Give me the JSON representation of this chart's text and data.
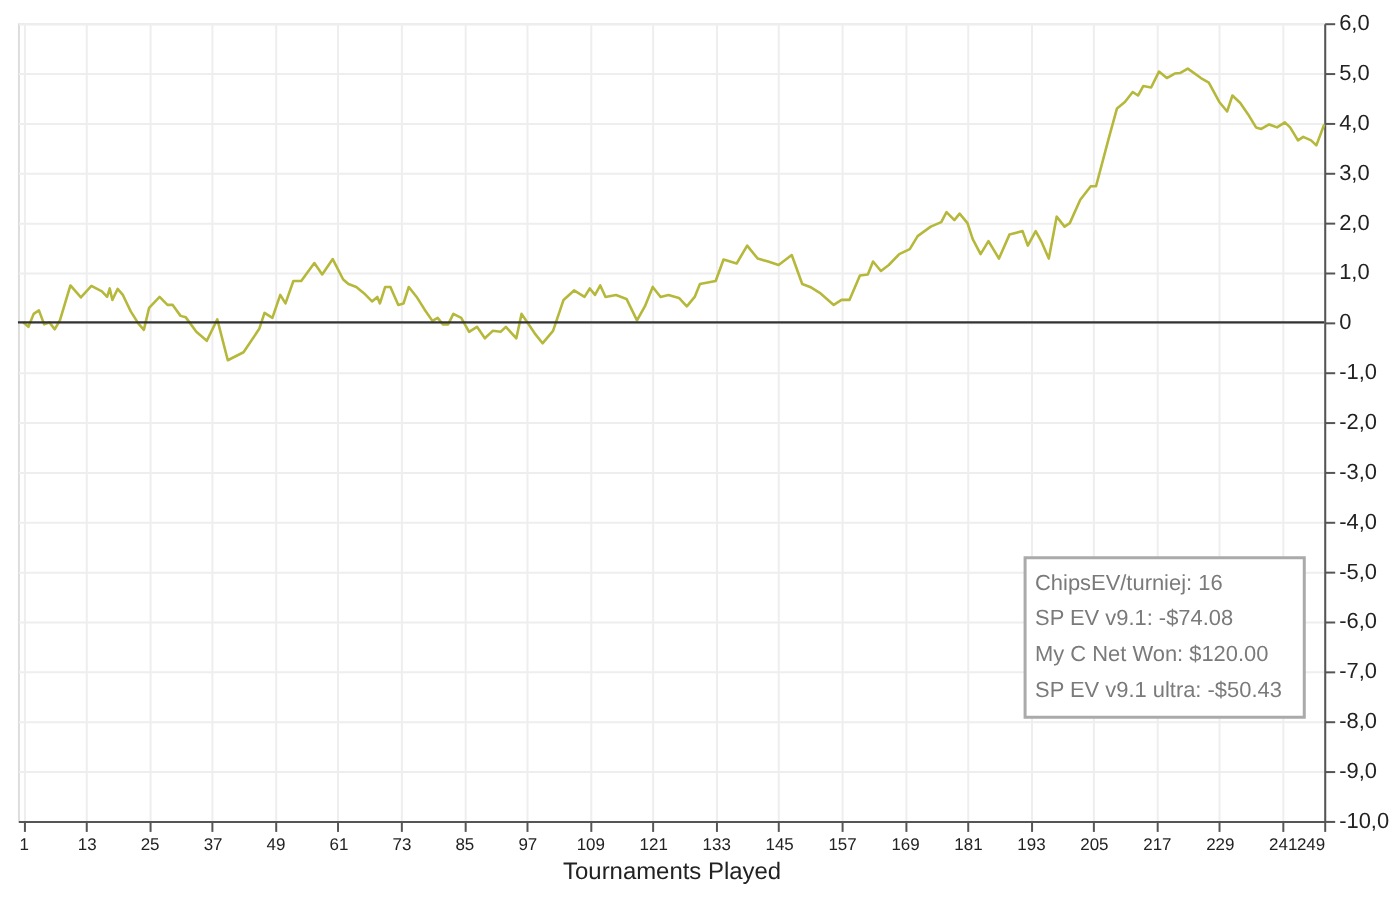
{
  "chart_data": {
    "type": "line",
    "xlabel": "Tournaments Played",
    "x": [
      1,
      2,
      3,
      4,
      5,
      6,
      7,
      8,
      10,
      12,
      14,
      16,
      17,
      17.5,
      18,
      19,
      20,
      21.5,
      23,
      24,
      25,
      27,
      28.5,
      29.5,
      31,
      32,
      34,
      36,
      38,
      40,
      43,
      46,
      47,
      48.5,
      50,
      51,
      52.5,
      54,
      56.5,
      58,
      60,
      62,
      63,
      64.5,
      66,
      67.5,
      68.5,
      69,
      70,
      71,
      72.5,
      73.5,
      74.5,
      76,
      77.5,
      79,
      80,
      81,
      82,
      83,
      84.5,
      86,
      87.5,
      89,
      90.5,
      92,
      93,
      95,
      96,
      98.5,
      100,
      102,
      104,
      106,
      108,
      109,
      110,
      111,
      112,
      114,
      116,
      118,
      119.5,
      121,
      122.5,
      124,
      126,
      127.5,
      129,
      130,
      133,
      134.5,
      137,
      139,
      141,
      143,
      145,
      147.5,
      149.5,
      151,
      153,
      155.5,
      157,
      158.5,
      160.5,
      162,
      163,
      164.5,
      166,
      168,
      170,
      171.5,
      174,
      176,
      177,
      178.5,
      179.5,
      181,
      182,
      183.5,
      185,
      187,
      189,
      191.5,
      192.5,
      194,
      195,
      196.5,
      198,
      199.5,
      200.5,
      202.5,
      204.5,
      205.5,
      208,
      209.5,
      211,
      212.5,
      213.5,
      214.5,
      216,
      217.5,
      219,
      220.5,
      221.5,
      223,
      225.5,
      227,
      229,
      230.5,
      231.5,
      233,
      234.5,
      236,
      237,
      238.5,
      240,
      241.5,
      242.5,
      244,
      245,
      246.5,
      247.5,
      249
    ],
    "series": [
      {
        "color": "#b5b83a",
        "values": [
          0,
          -0.09,
          0.17,
          0.24,
          -0.04,
          0,
          -0.14,
          0.04,
          0.74,
          0.5,
          0.73,
          0.62,
          0.51,
          0.68,
          0.45,
          0.67,
          0.55,
          0.22,
          -0.03,
          -0.15,
          0.29,
          0.51,
          0.35,
          0.35,
          0.13,
          0.1,
          -0.19,
          -0.37,
          0.06,
          -0.76,
          -0.6,
          -0.13,
          0.19,
          0.09,
          0.55,
          0.38,
          0.83,
          0.83,
          1.19,
          0.96,
          1.27,
          0.86,
          0.77,
          0.71,
          0.58,
          0.42,
          0.51,
          0.38,
          0.71,
          0.71,
          0.35,
          0.38,
          0.71,
          0.51,
          0.26,
          0.03,
          0.09,
          -0.04,
          -0.04,
          0.17,
          0.09,
          -0.19,
          -0.09,
          -0.32,
          -0.17,
          -0.19,
          -0.09,
          -0.32,
          0.17,
          -0.22,
          -0.42,
          -0.17,
          0.45,
          0.64,
          0.51,
          0.68,
          0.55,
          0.74,
          0.51,
          0.55,
          0.47,
          0.04,
          0.32,
          0.71,
          0.51,
          0.55,
          0.49,
          0.32,
          0.51,
          0.77,
          0.83,
          1.26,
          1.18,
          1.54,
          1.28,
          1.22,
          1.15,
          1.35,
          0.77,
          0.71,
          0.58,
          0.35,
          0.45,
          0.45,
          0.94,
          0.96,
          1.22,
          1.03,
          1.15,
          1.37,
          1.47,
          1.73,
          1.92,
          2.01,
          2.21,
          2.05,
          2.18,
          1.99,
          1.67,
          1.37,
          1.63,
          1.28,
          1.76,
          1.83,
          1.54,
          1.83,
          1.64,
          1.28,
          2.12,
          1.92,
          1.99,
          2.46,
          2.73,
          2.73,
          3.72,
          4.29,
          4.42,
          4.62,
          4.55,
          4.74,
          4.71,
          5.03,
          4.9,
          4.99,
          5.0,
          5.09,
          4.9,
          4.81,
          4.42,
          4.23,
          4.55,
          4.4,
          4.17,
          3.91,
          3.88,
          3.97,
          3.91,
          4.01,
          3.91,
          3.65,
          3.72,
          3.65,
          3.55,
          3.97
        ]
      }
    ],
    "xlim": [
      0,
      249
    ],
    "xticks": [
      1,
      13,
      25,
      37,
      49,
      61,
      73,
      85,
      97,
      109,
      121,
      133,
      145,
      157,
      169,
      181,
      193,
      205,
      217,
      229,
      241,
      249
    ],
    "ylim": [
      -10,
      6
    ],
    "yticks": [
      {
        "value": 6,
        "label": "6,0"
      },
      {
        "value": 5,
        "label": "5,0"
      },
      {
        "value": 4,
        "label": "4,0"
      },
      {
        "value": 3,
        "label": "3,0"
      },
      {
        "value": 2,
        "label": "2,0"
      },
      {
        "value": 1,
        "label": "1,0"
      },
      0,
      {
        "value": -1,
        "label": "-1,0"
      },
      {
        "value": -2,
        "label": "-2,0"
      },
      {
        "value": -3,
        "label": "-3,0"
      },
      {
        "value": -4,
        "label": "-4,0"
      },
      {
        "value": -5,
        "label": "-5,0"
      },
      {
        "value": -6,
        "label": "-6,0"
      },
      {
        "value": -7,
        "label": "-7,0"
      },
      {
        "value": -8,
        "label": "-8,0"
      },
      {
        "value": -9,
        "label": "-9,0"
      },
      {
        "value": -10,
        "label": "-10,0"
      }
    ],
    "ref_lines": [
      {
        "axis": "y",
        "value": 0,
        "color": "#333333"
      }
    ],
    "annotations": [
      "ChipsEV/turniej: 16",
      "SP EV v9.1: -$74.08",
      "My C Net Won: $120.00",
      "SP EV v9.1 ultra: -$50.43"
    ],
    "grid": true,
    "legend": false,
    "marker": "none",
    "line_style": "solid"
  }
}
